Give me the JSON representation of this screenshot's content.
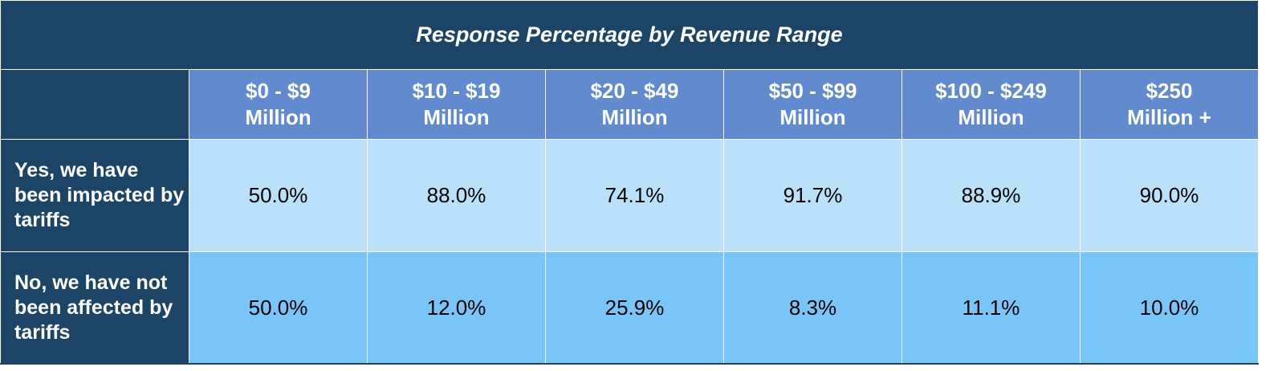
{
  "chart_data": {
    "type": "table",
    "title": "Response Percentage by Revenue Range",
    "columns": [
      "$0 - $9 Million",
      "$10 - $19 Million",
      "$20 - $49 Million",
      "$50 - $99 Million",
      "$100 - $249 Million",
      "$250 Million +"
    ],
    "column_lines": [
      [
        "$0 - $9",
        "Million"
      ],
      [
        "$10 - $19",
        "Million"
      ],
      [
        "$20 - $49",
        "Million"
      ],
      [
        "$50 - $99",
        "Million"
      ],
      [
        "$100 - $249",
        "Million"
      ],
      [
        "$250",
        "Million +"
      ]
    ],
    "rows": [
      {
        "label": "Yes, we have been impacted by tariffs",
        "values": [
          "50.0%",
          "88.0%",
          "74.1%",
          "91.7%",
          "88.9%",
          "90.0%"
        ]
      },
      {
        "label": "No, we have not been affected by tariffs",
        "values": [
          "50.0%",
          "12.0%",
          "25.9%",
          "8.3%",
          "11.1%",
          "10.0%"
        ]
      }
    ],
    "colors": {
      "title_bg": "#1c4466",
      "header_bg": "#628bcf",
      "row1_bg": "#bae1fa",
      "row2_bg": "#79c5f8"
    }
  }
}
